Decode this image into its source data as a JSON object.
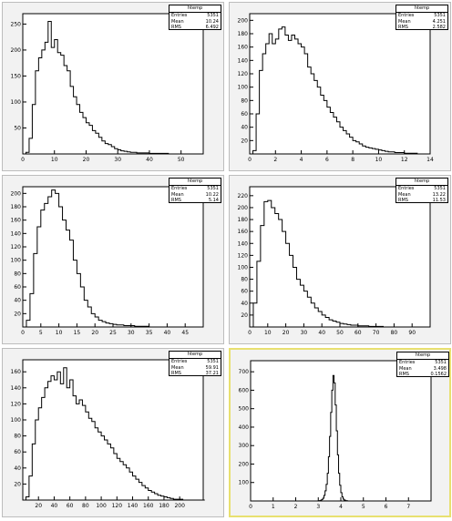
{
  "chart_data": [
    {
      "type": "histogram",
      "title": "",
      "stats": {
        "name": "htemp",
        "entries": "5351",
        "mean": "10.24",
        "rms": "6.492"
      },
      "xlim": [
        0,
        57
      ],
      "ylim": [
        0,
        270
      ],
      "xticks": [
        0,
        10,
        20,
        30,
        40,
        50
      ],
      "yticks": [
        50,
        100,
        150,
        200,
        250
      ],
      "bin_width": 1,
      "values": [
        0,
        3,
        30,
        95,
        160,
        185,
        200,
        215,
        255,
        205,
        220,
        195,
        190,
        170,
        160,
        130,
        110,
        95,
        80,
        70,
        60,
        55,
        45,
        40,
        32,
        25,
        20,
        18,
        14,
        10,
        8,
        6,
        5,
        4,
        3,
        3,
        2,
        2,
        2,
        2,
        1,
        1,
        1,
        1,
        1,
        1,
        0,
        0,
        0,
        0,
        0,
        0,
        0,
        0,
        0,
        0,
        0
      ]
    },
    {
      "type": "histogram",
      "title": "",
      "stats": {
        "name": "htemp",
        "entries": "5351",
        "mean": "4.251",
        "rms": "2.582"
      },
      "xlim": [
        0,
        14
      ],
      "ylim": [
        0,
        210
      ],
      "xticks": [
        0,
        2,
        4,
        6,
        8,
        10,
        12,
        14
      ],
      "yticks": [
        20,
        40,
        60,
        80,
        100,
        120,
        140,
        160,
        180,
        200
      ],
      "bin_width": 0.25,
      "values": [
        0,
        5,
        60,
        125,
        150,
        165,
        180,
        165,
        172,
        187,
        190,
        178,
        170,
        178,
        172,
        165,
        160,
        150,
        130,
        120,
        110,
        100,
        88,
        80,
        70,
        62,
        55,
        48,
        40,
        35,
        30,
        25,
        20,
        18,
        15,
        12,
        10,
        9,
        8,
        7,
        6,
        5,
        4,
        3,
        3,
        2,
        2,
        2,
        1,
        1,
        1,
        1,
        0,
        0,
        0,
        0
      ]
    },
    {
      "type": "histogram",
      "title": "",
      "stats": {
        "name": "htemp",
        "entries": "5351",
        "mean": "10.22",
        "rms": "5.14"
      },
      "xlim": [
        0,
        50
      ],
      "ylim": [
        0,
        210
      ],
      "xticks": [
        0,
        5,
        10,
        15,
        20,
        25,
        30,
        35,
        40,
        45
      ],
      "yticks": [
        20,
        40,
        60,
        80,
        100,
        120,
        140,
        160,
        180,
        200
      ],
      "bin_width": 1,
      "values": [
        0,
        10,
        50,
        110,
        150,
        175,
        185,
        195,
        205,
        200,
        180,
        160,
        145,
        130,
        100,
        80,
        60,
        40,
        30,
        20,
        15,
        10,
        8,
        6,
        5,
        4,
        3,
        3,
        2,
        2,
        2,
        1,
        1,
        1,
        1,
        0,
        0,
        0,
        0,
        0,
        0,
        0,
        0,
        0,
        0,
        0,
        0,
        0,
        0,
        0
      ]
    },
    {
      "type": "histogram",
      "title": "",
      "stats": {
        "name": "htemp",
        "entries": "5351",
        "mean": "13.22",
        "rms": "11.53"
      },
      "xlim": [
        0,
        100
      ],
      "ylim": [
        0,
        235
      ],
      "xticks": [
        0,
        10,
        20,
        30,
        40,
        50,
        60,
        70,
        80,
        90
      ],
      "yticks": [
        20,
        40,
        60,
        80,
        100,
        120,
        140,
        160,
        180,
        200,
        220
      ],
      "bin_width": 2,
      "values": [
        0,
        40,
        110,
        170,
        210,
        212,
        200,
        190,
        180,
        160,
        140,
        120,
        100,
        80,
        70,
        60,
        50,
        40,
        32,
        26,
        20,
        16,
        12,
        10,
        8,
        6,
        5,
        4,
        3,
        3,
        2,
        2,
        2,
        1,
        1,
        1,
        1,
        0,
        0,
        0,
        0,
        0,
        0,
        0,
        0,
        0,
        0,
        0,
        0,
        0
      ]
    },
    {
      "type": "histogram",
      "title": "",
      "stats": {
        "name": "htemp",
        "entries": "5351",
        "mean": "59.91",
        "rms": "37.21"
      },
      "xlim": [
        0,
        230
      ],
      "ylim": [
        0,
        175
      ],
      "xticks": [
        20,
        40,
        60,
        80,
        100,
        120,
        140,
        160,
        180,
        200
      ],
      "yticks": [
        20,
        40,
        60,
        80,
        100,
        120,
        140,
        160
      ],
      "bin_width": 4,
      "values": [
        0,
        4,
        30,
        70,
        100,
        115,
        128,
        140,
        148,
        155,
        150,
        160,
        145,
        165,
        140,
        150,
        130,
        120,
        125,
        118,
        110,
        102,
        98,
        90,
        85,
        80,
        75,
        70,
        65,
        58,
        52,
        48,
        44,
        40,
        35,
        30,
        26,
        22,
        18,
        15,
        12,
        10,
        8,
        6,
        5,
        4,
        3,
        2,
        1,
        1,
        1,
        0,
        0,
        0,
        0,
        0,
        0,
        0
      ]
    },
    {
      "type": "histogram",
      "title": "",
      "stats": {
        "name": "htemp",
        "entries": "5351",
        "mean": "3.498",
        "rms": "0.1562"
      },
      "xlim": [
        0,
        8
      ],
      "ylim": [
        0,
        760
      ],
      "xticks": [
        0,
        1,
        2,
        3,
        4,
        5,
        6,
        7
      ],
      "yticks": [
        100,
        200,
        300,
        400,
        500,
        600,
        700
      ],
      "bin_width": 0.05,
      "values": [
        0,
        0,
        0,
        0,
        0,
        0,
        0,
        0,
        0,
        0,
        0,
        0,
        0,
        0,
        0,
        0,
        0,
        0,
        0,
        0,
        0,
        0,
        0,
        0,
        0,
        0,
        0,
        0,
        0,
        0,
        0,
        0,
        0,
        0,
        0,
        0,
        0,
        0,
        0,
        0,
        0,
        0,
        0,
        0,
        0,
        0,
        0,
        0,
        0,
        0,
        0,
        0,
        0,
        0,
        0,
        0,
        0,
        0,
        0,
        0,
        1,
        2,
        4,
        8,
        15,
        30,
        55,
        90,
        150,
        240,
        350,
        480,
        600,
        680,
        640,
        520,
        380,
        250,
        150,
        85,
        45,
        22,
        10,
        5,
        2,
        1,
        0,
        0,
        0,
        0,
        0,
        0,
        0,
        0,
        0,
        0,
        0,
        0,
        0,
        0,
        0,
        0,
        0,
        0,
        0,
        0,
        0,
        0,
        0,
        0,
        0,
        0,
        0,
        0,
        0,
        0,
        0,
        0,
        0,
        0,
        0,
        0,
        0,
        0,
        0,
        0,
        0,
        0,
        0,
        0,
        0,
        0,
        0,
        0,
        0,
        0,
        0,
        0,
        0,
        0,
        0,
        0,
        0,
        0,
        0,
        0,
        0,
        0,
        0,
        0,
        0,
        0,
        0,
        0,
        0,
        0,
        0,
        0,
        0,
        0
      ]
    }
  ],
  "colors": {
    "pad_bg": "#f2f2f2",
    "frame_bg": "#ffffff",
    "line": "#000000",
    "selected_border": "#e8e070"
  },
  "labels": {
    "entries": "Entries",
    "mean": "Mean",
    "rms": "RMS"
  }
}
